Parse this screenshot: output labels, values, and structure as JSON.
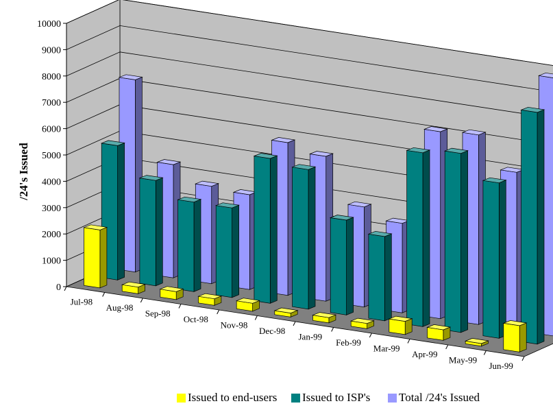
{
  "chart_data": {
    "type": "bar",
    "subtype": "3d-clustered-column",
    "title": "",
    "ylabel": "/24's Issued",
    "xlabel": "",
    "ylim": [
      0,
      10000
    ],
    "yticks": [
      0,
      1000,
      2000,
      3000,
      4000,
      5000,
      6000,
      7000,
      8000,
      9000,
      10000
    ],
    "ytick_labels": [
      "0",
      "1000",
      "2000",
      "3000",
      "4000",
      "5000",
      "6000",
      "7000",
      "8000",
      "9000",
      "10000"
    ],
    "grid": true,
    "legend_position": "bottom",
    "categories": [
      "Jul-98",
      "Aug-98",
      "Sep-98",
      "Oct-98",
      "Nov-98",
      "Dec-98",
      "Jan-99",
      "Feb-99",
      "Mar-99",
      "Apr-99",
      "May-99",
      "Jun-99"
    ],
    "series": [
      {
        "name": "Issued to end-users",
        "color": "#ffff00",
        "values": [
          2200,
          250,
          300,
          250,
          300,
          150,
          200,
          200,
          500,
          400,
          100,
          1000
        ]
      },
      {
        "name": "Issued to ISP's",
        "color": "#008080",
        "values": [
          5100,
          4000,
          3400,
          3400,
          5500,
          5300,
          3600,
          3200,
          6600,
          6800,
          5900,
          8800
        ]
      },
      {
        "name": "Total /24's Issued",
        "color": "#9999ff",
        "values": [
          7300,
          4300,
          3700,
          3600,
          5800,
          5500,
          3800,
          3400,
          7100,
          7200,
          6000,
          9800
        ]
      }
    ]
  }
}
